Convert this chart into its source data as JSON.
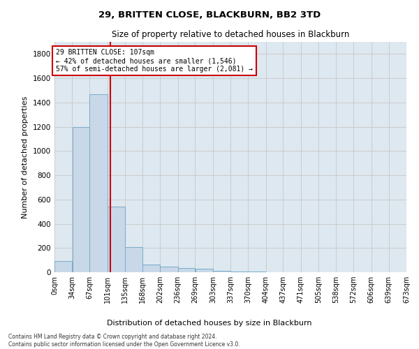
{
  "title1": "29, BRITTEN CLOSE, BLACKBURN, BB2 3TD",
  "title2": "Size of property relative to detached houses in Blackburn",
  "xlabel": "Distribution of detached houses by size in Blackburn",
  "ylabel": "Number of detached properties",
  "footnote1": "Contains HM Land Registry data © Crown copyright and database right 2024.",
  "footnote2": "Contains public sector information licensed under the Open Government Licence v3.0.",
  "bar_edges": [
    0,
    34,
    67,
    101,
    135,
    168,
    202,
    236,
    269,
    303,
    337,
    370,
    404,
    437,
    471,
    505,
    538,
    572,
    606,
    639,
    673
  ],
  "bar_heights": [
    90,
    1200,
    1470,
    540,
    205,
    65,
    48,
    35,
    28,
    10,
    5,
    3,
    2,
    1,
    0,
    0,
    0,
    0,
    0,
    0
  ],
  "bar_color": "#c8d8e8",
  "bar_edge_color": "#7aaac8",
  "property_size": 107,
  "vline_color": "#cc0000",
  "annotation_line1": "29 BRITTEN CLOSE: 107sqm",
  "annotation_line2": "← 42% of detached houses are smaller (1,546)",
  "annotation_line3": "57% of semi-detached houses are larger (2,081) →",
  "annotation_box_color": "#cc0000",
  "annotation_bg": "#ffffff",
  "ylim": [
    0,
    1900
  ],
  "yticks": [
    0,
    200,
    400,
    600,
    800,
    1000,
    1200,
    1400,
    1600,
    1800
  ],
  "grid_color": "#cccccc",
  "bg_color": "#dde8f0",
  "fig_bg_color": "#ffffff"
}
